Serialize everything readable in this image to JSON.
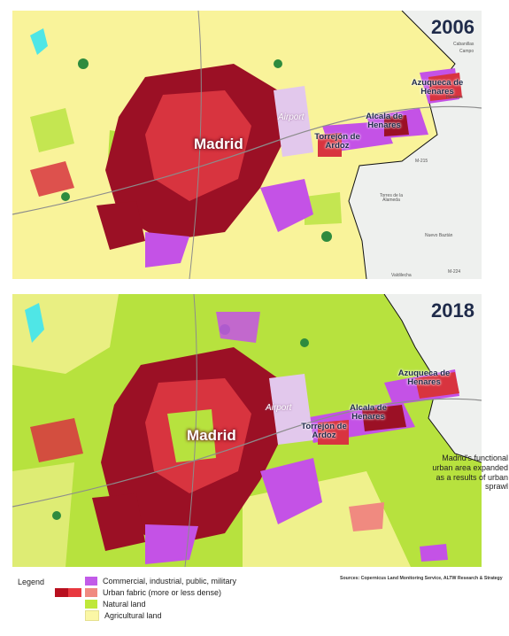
{
  "maps": [
    {
      "year": "2006",
      "labels": {
        "madrid": "Madrid",
        "airport": "Airport",
        "torrejon": "Torrejón de Ardoz",
        "alcala": "Alcala de Henares",
        "azuqueca": "Azuqueca de Henares"
      }
    },
    {
      "year": "2018",
      "labels": {
        "madrid": "Madrid",
        "airport": "Airport",
        "torrejon": "Torrejón de Ardoz",
        "alcala": "Alcala de Henares",
        "azuqueca": "Azuqueca de Henares"
      }
    }
  ],
  "basemap_labels": {
    "cabanillas": "Cabanillas",
    "campo": "Campo",
    "henares": "Henares",
    "m215": "M-215",
    "torres": "Torres de la Alameda",
    "nuevo_baztan": "Nuevo Baztán",
    "valdilecha": "Valdilecha",
    "m224": "M-224"
  },
  "annotation": "Madrid's functional urban area expanded as a results of urban sprawl",
  "sources": "Sources: Copernicus Land Monitoring Service, ALTW Research & Strategy",
  "legend": {
    "title": "Legend",
    "items": [
      {
        "label": "Commercial, industrial, public, military",
        "color": "#c25be8"
      },
      {
        "label": "Urban fabric (more or less dense)",
        "colors": [
          "#b80f1f",
          "#e8383f",
          "#f08a80"
        ]
      },
      {
        "label": "Natural land",
        "color": "#bfe83a"
      },
      {
        "label": "Agricultural land",
        "color": "#fbf7a6"
      }
    ]
  },
  "colors": {
    "agricultural": "#f9f39a",
    "natural": "#b7e23e",
    "urban_dense": "#9b1025",
    "urban_mid": "#d8343f",
    "urban_light": "#f08a80",
    "commercial": "#c452e6",
    "airport": "#e2c8ec",
    "water": "#4fe6e6",
    "forest": "#2e8b3e",
    "basemap": "#eef0ee"
  }
}
